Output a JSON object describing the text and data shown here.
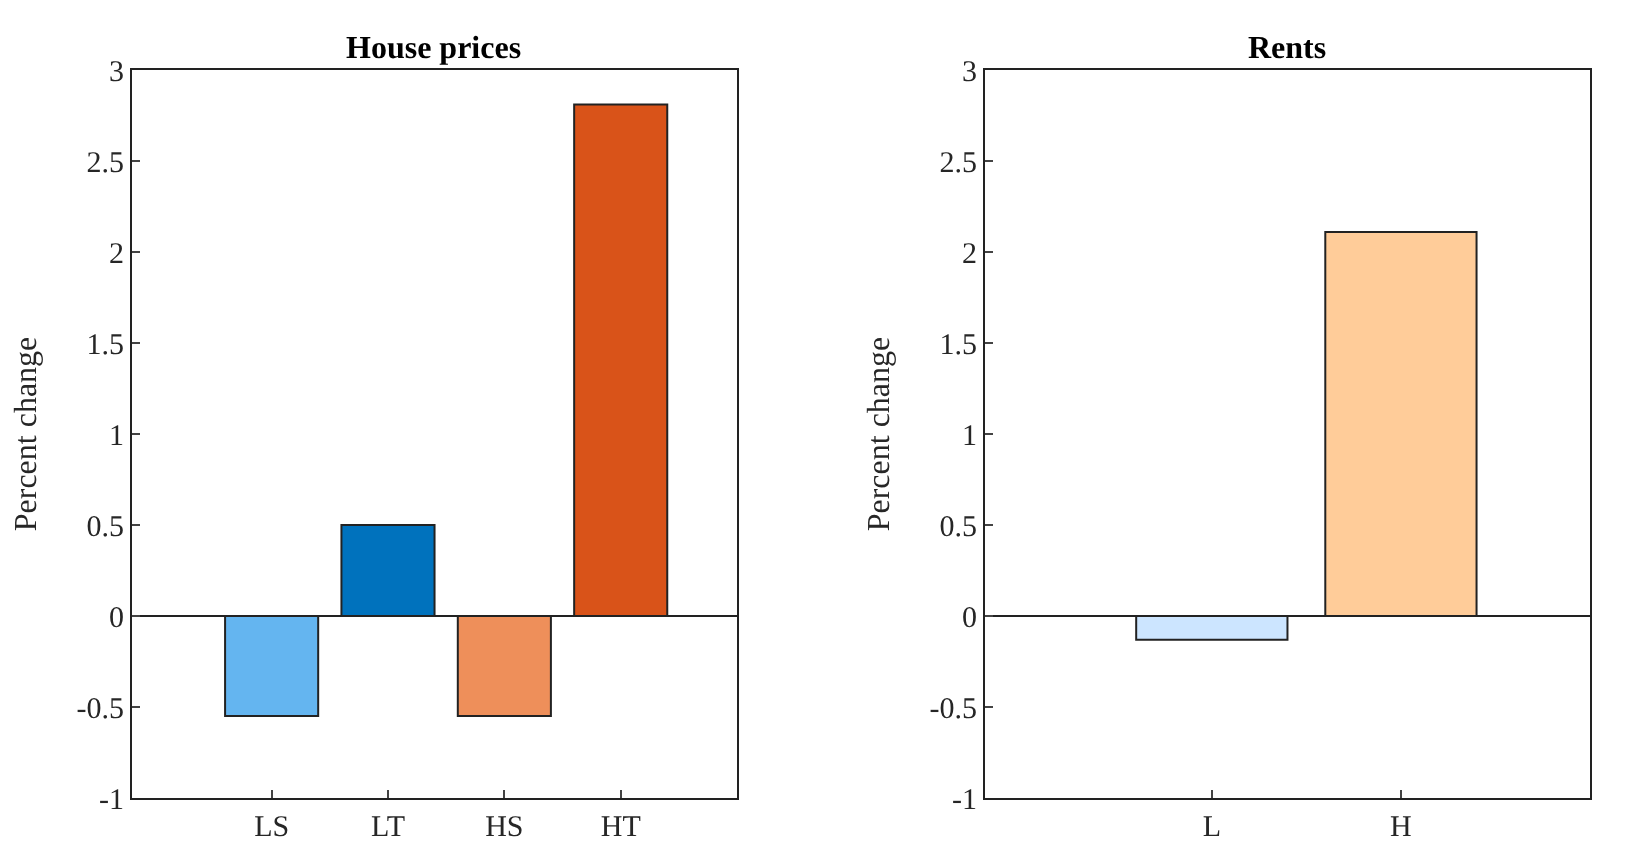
{
  "chart_data": [
    {
      "type": "bar",
      "title": "House prices",
      "ylabel": "Percent change",
      "categories": [
        "LS",
        "LT",
        "HS",
        "HT"
      ],
      "values": [
        -0.55,
        0.5,
        -0.55,
        2.81
      ],
      "colors": [
        "#64b5f0",
        "#0072bd",
        "#ee8f5a",
        "#d95319"
      ],
      "ylim": [
        -1,
        3
      ],
      "yticks": [
        -1,
        -0.5,
        0,
        0.5,
        1,
        1.5,
        2,
        2.5,
        3
      ]
    },
    {
      "type": "bar",
      "title": "Rents",
      "ylabel": "Percent change",
      "categories": [
        "L",
        "H"
      ],
      "values": [
        -0.13,
        2.11
      ],
      "colors": [
        "#cce5ff",
        "#ffcc99"
      ],
      "ylim": [
        -1,
        3
      ],
      "yticks": [
        -1,
        -0.5,
        0,
        0.5,
        1,
        1.5,
        2,
        2.5,
        3
      ]
    }
  ]
}
